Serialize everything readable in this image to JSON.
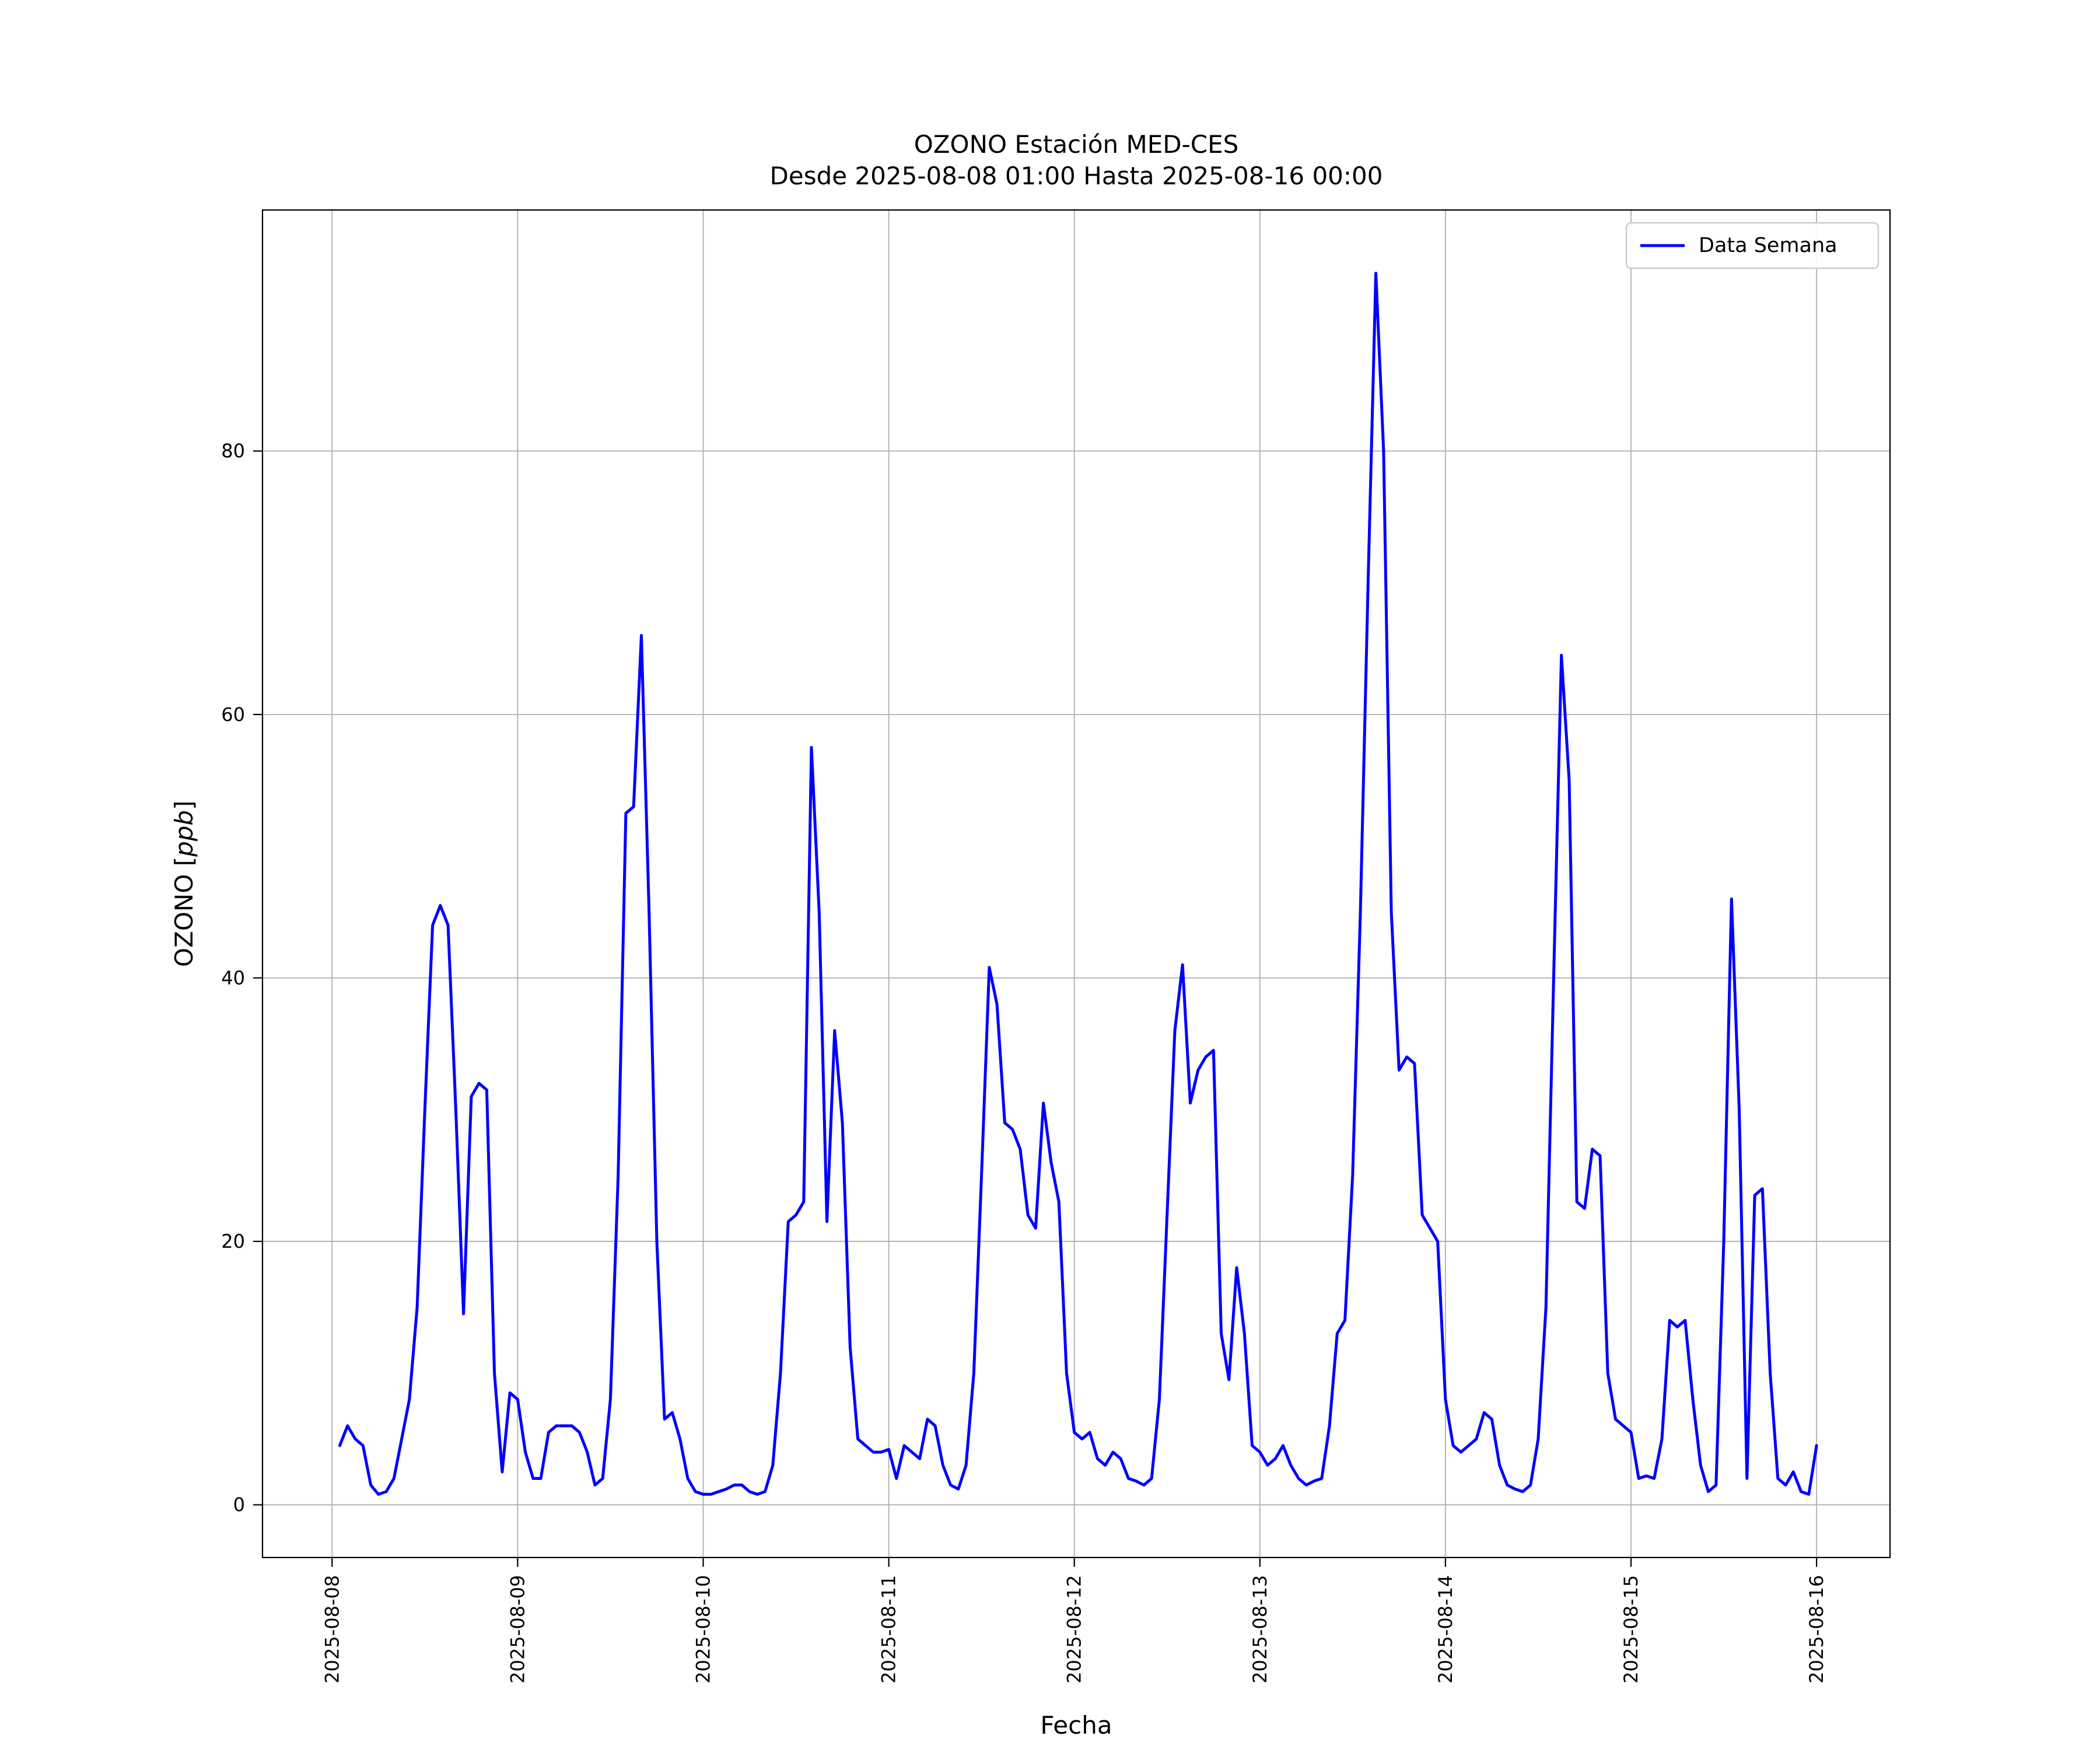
{
  "title": {
    "line1": "OZONO Estación MED-CES",
    "line2": "Desde 2025-08-08 01:00 Hasta 2025-08-16 00:00"
  },
  "axes": {
    "xlabel": "Fecha",
    "ylabel_prefix": "OZONO [",
    "ylabel_math": "ppb",
    "ylabel_suffix": "]"
  },
  "legend": {
    "label": "Data Semana"
  },
  "chart_data": {
    "type": "line",
    "title": "OZONO Estación MED-CES\nDesde 2025-08-08 01:00 Hasta 2025-08-16 00:00",
    "xlabel": "Fecha",
    "ylabel": "OZONO [ppb]",
    "grid": true,
    "legend_position": "upper right",
    "x_start": "2025-08-08 01:00",
    "x_end": "2025-08-16 00:00",
    "x_interval_hours": 1,
    "x_start_hour": 1,
    "xlim_hours": [
      -9,
      201.5
    ],
    "ylim": [
      -4,
      98.3
    ],
    "x_ticks_hours": [
      0,
      24,
      48,
      72,
      96,
      120,
      144,
      168,
      192
    ],
    "x_tick_labels": [
      "2025-08-08",
      "2025-08-09",
      "2025-08-10",
      "2025-08-11",
      "2025-08-12",
      "2025-08-13",
      "2025-08-14",
      "2025-08-15",
      "2025-08-16"
    ],
    "y_ticks": [
      0,
      20,
      40,
      60,
      80
    ],
    "series": [
      {
        "name": "Data Semana",
        "color": "#0000ff",
        "values": [
          4.5,
          6,
          5,
          4.5,
          1.5,
          0.8,
          1,
          2,
          5,
          8,
          15,
          30,
          44,
          45.5,
          44,
          30,
          14.5,
          31,
          32,
          31.5,
          10,
          2.5,
          8.5,
          8,
          4,
          2,
          2,
          5.5,
          6,
          6,
          6,
          5.5,
          4,
          1.5,
          2,
          8,
          25,
          52.5,
          53,
          66,
          45,
          20,
          6.5,
          7,
          5,
          2,
          1,
          0.8,
          0.8,
          1,
          1.2,
          1.5,
          1.5,
          1,
          0.8,
          1,
          3,
          10,
          21.5,
          22,
          23,
          57.5,
          45,
          21.5,
          36,
          29,
          12,
          5,
          4.5,
          4,
          4,
          4.2,
          2,
          4.5,
          4,
          3.5,
          6.5,
          6,
          3,
          1.5,
          1.2,
          3,
          10,
          25,
          40.8,
          38,
          29,
          28.5,
          27,
          22,
          21,
          30.5,
          26,
          23,
          10,
          5.5,
          5,
          5.5,
          3.5,
          3,
          4,
          3.5,
          2,
          1.8,
          1.5,
          2,
          8,
          22,
          36,
          41,
          30.5,
          33,
          34,
          34.5,
          13,
          9.5,
          18,
          13,
          4.5,
          4,
          3,
          3.5,
          4.5,
          3,
          2,
          1.5,
          1.8,
          2,
          6,
          13,
          14,
          25,
          45,
          70,
          93.5,
          80,
          45,
          33,
          34,
          33.5,
          22,
          21,
          20,
          8,
          4.5,
          4,
          4.5,
          5,
          7,
          6.5,
          3,
          1.5,
          1.2,
          1,
          1.5,
          5,
          15,
          40,
          64.5,
          55,
          23,
          22.5,
          27,
          26.5,
          10,
          6.5,
          6,
          5.5,
          2,
          2.2,
          2,
          5,
          14,
          13.5,
          14,
          8,
          3,
          1,
          1.5,
          20,
          46,
          30,
          2,
          23.5,
          24,
          10,
          2,
          1.5,
          2.5,
          1,
          0.8,
          4.5
        ]
      }
    ]
  }
}
